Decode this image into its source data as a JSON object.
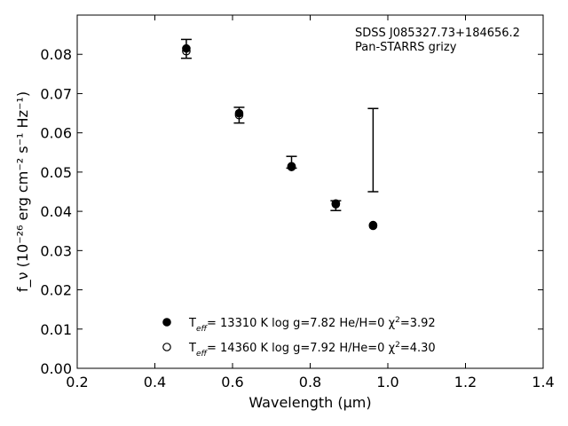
{
  "chart_data": {
    "type": "scatter",
    "annotation_lines": [
      "SDSS J085327.73+184656.2",
      "Pan-STARRS grizy"
    ],
    "xlabel": "Wavelength (μm)",
    "ylabel": "f_ν (10⁻²⁶ erg cm⁻² s⁻¹ Hz⁻¹)",
    "xlim": [
      0.2,
      1.4
    ],
    "ylim": [
      0.0,
      0.09
    ],
    "xticks": [
      0.2,
      0.4,
      0.6,
      0.8,
      1.0,
      1.2,
      1.4
    ],
    "yticks": [
      0.0,
      0.01,
      0.02,
      0.03,
      0.04,
      0.05,
      0.06,
      0.07,
      0.08
    ],
    "xtick_labels": [
      "0.2",
      "0.4",
      "0.6",
      "0.8",
      "1.0",
      "1.2",
      "1.4"
    ],
    "ytick_labels": [
      "0.00",
      "0.01",
      "0.02",
      "0.03",
      "0.04",
      "0.05",
      "0.06",
      "0.07",
      "0.08"
    ],
    "observed": {
      "x": [
        0.481,
        0.617,
        0.752,
        0.866,
        0.962
      ],
      "y": [
        0.0815,
        0.0645,
        0.0515,
        0.042,
        0.0555
      ],
      "yerr_low": [
        0.0025,
        0.002,
        0.0005,
        0.0018,
        0.0105
      ],
      "yerr_high": [
        0.0023,
        0.002,
        0.0025,
        0.0007,
        0.0107
      ]
    },
    "series": [
      {
        "legend": "T_eff= 13310 K  log g=7.82  He/H=0  χ²=3.92",
        "marker": "filled-circle",
        "x": [
          0.481,
          0.617,
          0.752,
          0.866,
          0.962
        ],
        "y": [
          0.0815,
          0.065,
          0.0515,
          0.042,
          0.0365
        ]
      },
      {
        "legend": "T_eff= 14360 K  log g=7.92  H/He=0  χ²=4.30",
        "marker": "open-circle",
        "x": [
          0.481,
          0.617,
          0.752,
          0.866,
          0.962
        ],
        "y": [
          0.0808,
          0.0645,
          0.0513,
          0.0418,
          0.0363
        ]
      }
    ],
    "legend_placement": "lower-center",
    "grid": false,
    "colors": {
      "marker": "#000000",
      "errorbar": "#000000",
      "axes": "#000000"
    }
  }
}
